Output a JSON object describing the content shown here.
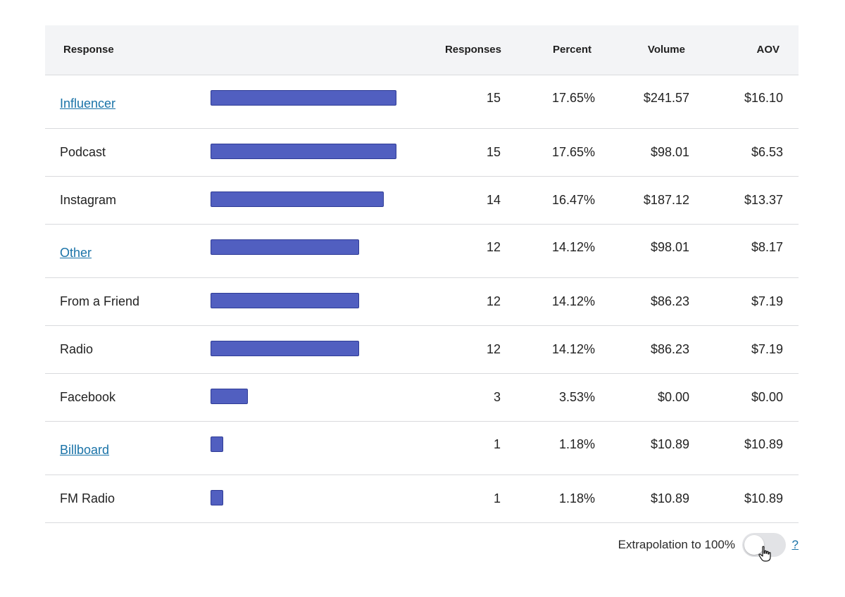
{
  "table": {
    "headers": {
      "response": "Response",
      "responses": "Responses",
      "percent": "Percent",
      "volume": "Volume",
      "aov": "AOV"
    },
    "max_responses": 15,
    "bar_color": "#515fc0",
    "link_color": "#1a73a8",
    "rows": [
      {
        "label": "Influencer",
        "link": true,
        "responses": 15,
        "responses_text": "15",
        "percent": "17.65%",
        "volume": "$241.57",
        "aov": "$16.10"
      },
      {
        "label": "Podcast",
        "link": false,
        "responses": 15,
        "responses_text": "15",
        "percent": "17.65%",
        "volume": "$98.01",
        "aov": "$6.53"
      },
      {
        "label": "Instagram",
        "link": false,
        "responses": 14,
        "responses_text": "14",
        "percent": "16.47%",
        "volume": "$187.12",
        "aov": "$13.37"
      },
      {
        "label": "Other",
        "link": true,
        "responses": 12,
        "responses_text": "12",
        "percent": "14.12%",
        "volume": "$98.01",
        "aov": "$8.17"
      },
      {
        "label": "From a Friend",
        "link": false,
        "responses": 12,
        "responses_text": "12",
        "percent": "14.12%",
        "volume": "$86.23",
        "aov": "$7.19"
      },
      {
        "label": "Radio",
        "link": false,
        "responses": 12,
        "responses_text": "12",
        "percent": "14.12%",
        "volume": "$86.23",
        "aov": "$7.19"
      },
      {
        "label": "Facebook",
        "link": false,
        "responses": 3,
        "responses_text": "3",
        "percent": "3.53%",
        "volume": "$0.00",
        "aov": "$0.00"
      },
      {
        "label": "Billboard",
        "link": true,
        "responses": 1,
        "responses_text": "1",
        "percent": "1.18%",
        "volume": "$10.89",
        "aov": "$10.89"
      },
      {
        "label": "FM Radio",
        "link": false,
        "responses": 1,
        "responses_text": "1",
        "percent": "1.18%",
        "volume": "$10.89",
        "aov": "$10.89"
      }
    ]
  },
  "footer": {
    "extrapolation_label": "Extrapolation to 100%",
    "toggle_on": false,
    "help_label": "?"
  }
}
